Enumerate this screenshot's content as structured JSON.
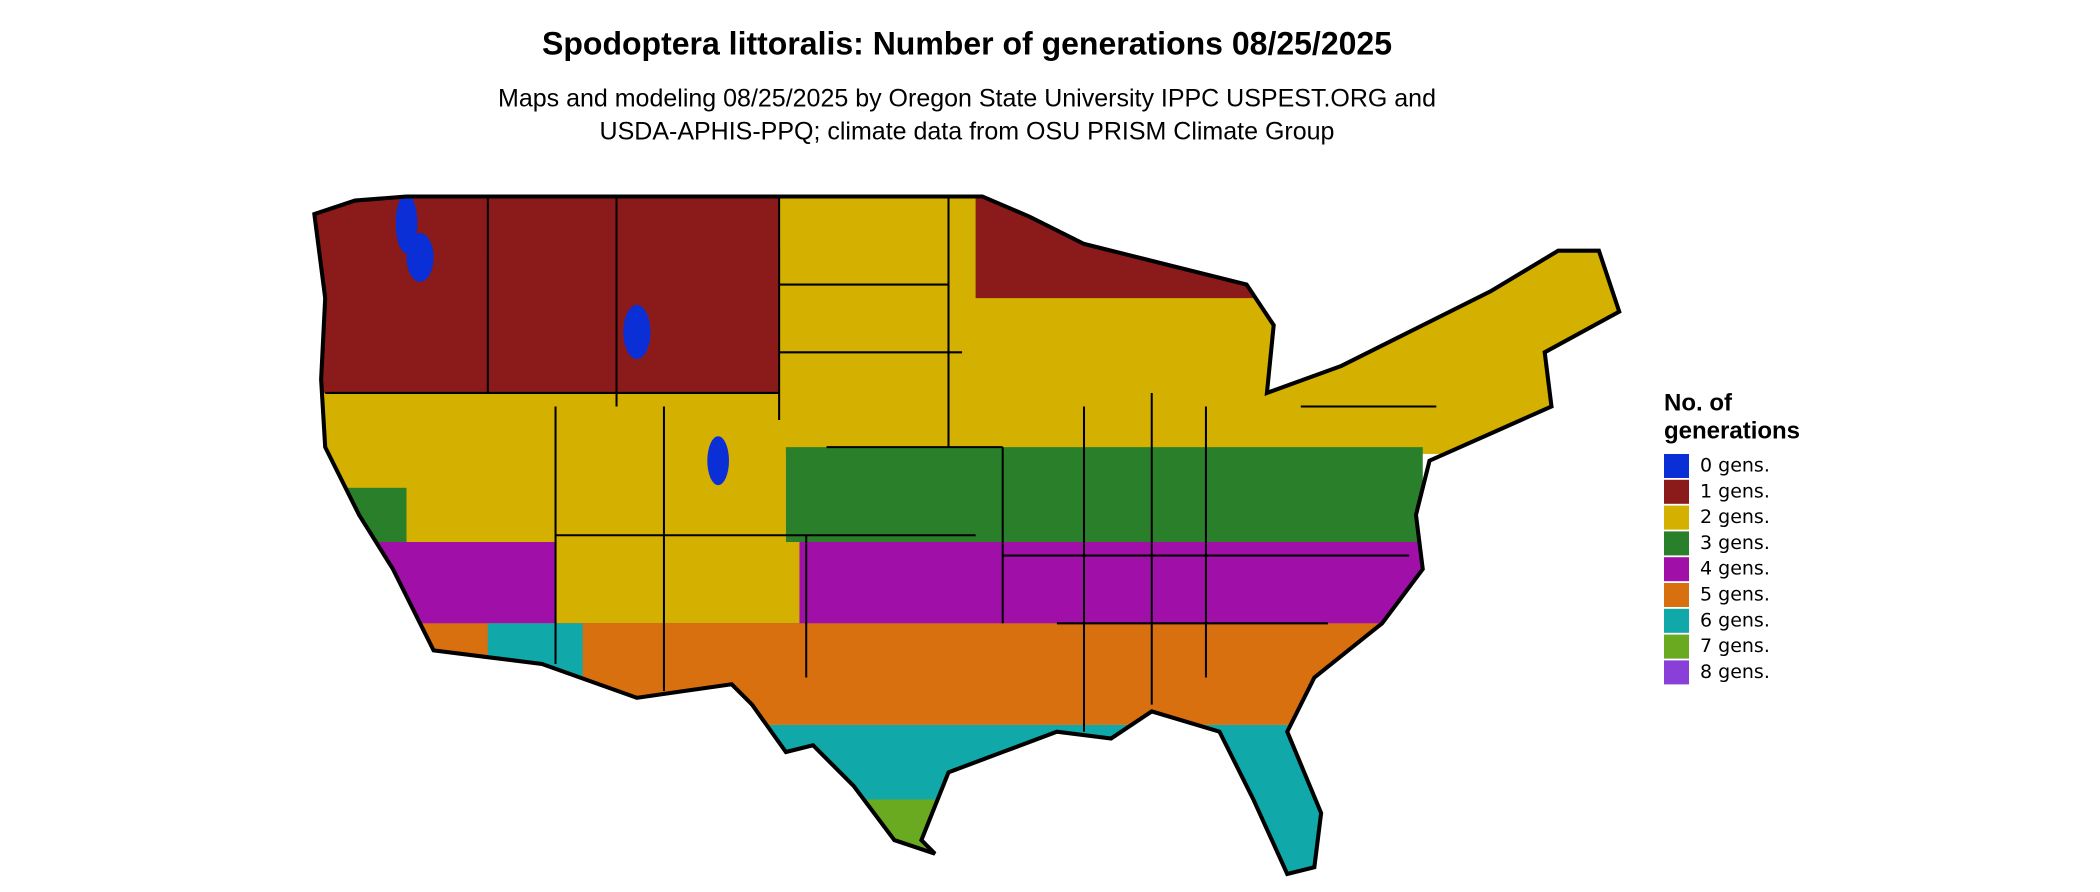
{
  "header": {
    "title": "Spodoptera littoralis: Number of generations 08/25/2025",
    "subtitle_lines": [
      "Maps and modeling 08/25/2025 by Oregon State University IPPC USPEST.ORG and",
      "USDA-APHIS-PPQ; climate data from OSU PRISM Climate Group"
    ]
  },
  "legend": {
    "title_lines": [
      "No. of",
      "generations"
    ],
    "items": [
      {
        "label": "0 gens.",
        "color": "#0a2fd6"
      },
      {
        "label": "1 gens.",
        "color": "#8b1a1a"
      },
      {
        "label": "2 gens.",
        "color": "#d4b000"
      },
      {
        "label": "3 gens.",
        "color": "#2a7f2a"
      },
      {
        "label": "4 gens.",
        "color": "#a010a8"
      },
      {
        "label": "5 gens.",
        "color": "#d87010"
      },
      {
        "label": "6 gens.",
        "color": "#10a8a8"
      },
      {
        "label": "7 gens.",
        "color": "#6aaa20"
      },
      {
        "label": "8 gens.",
        "color": "#8a40d8"
      }
    ]
  }
}
